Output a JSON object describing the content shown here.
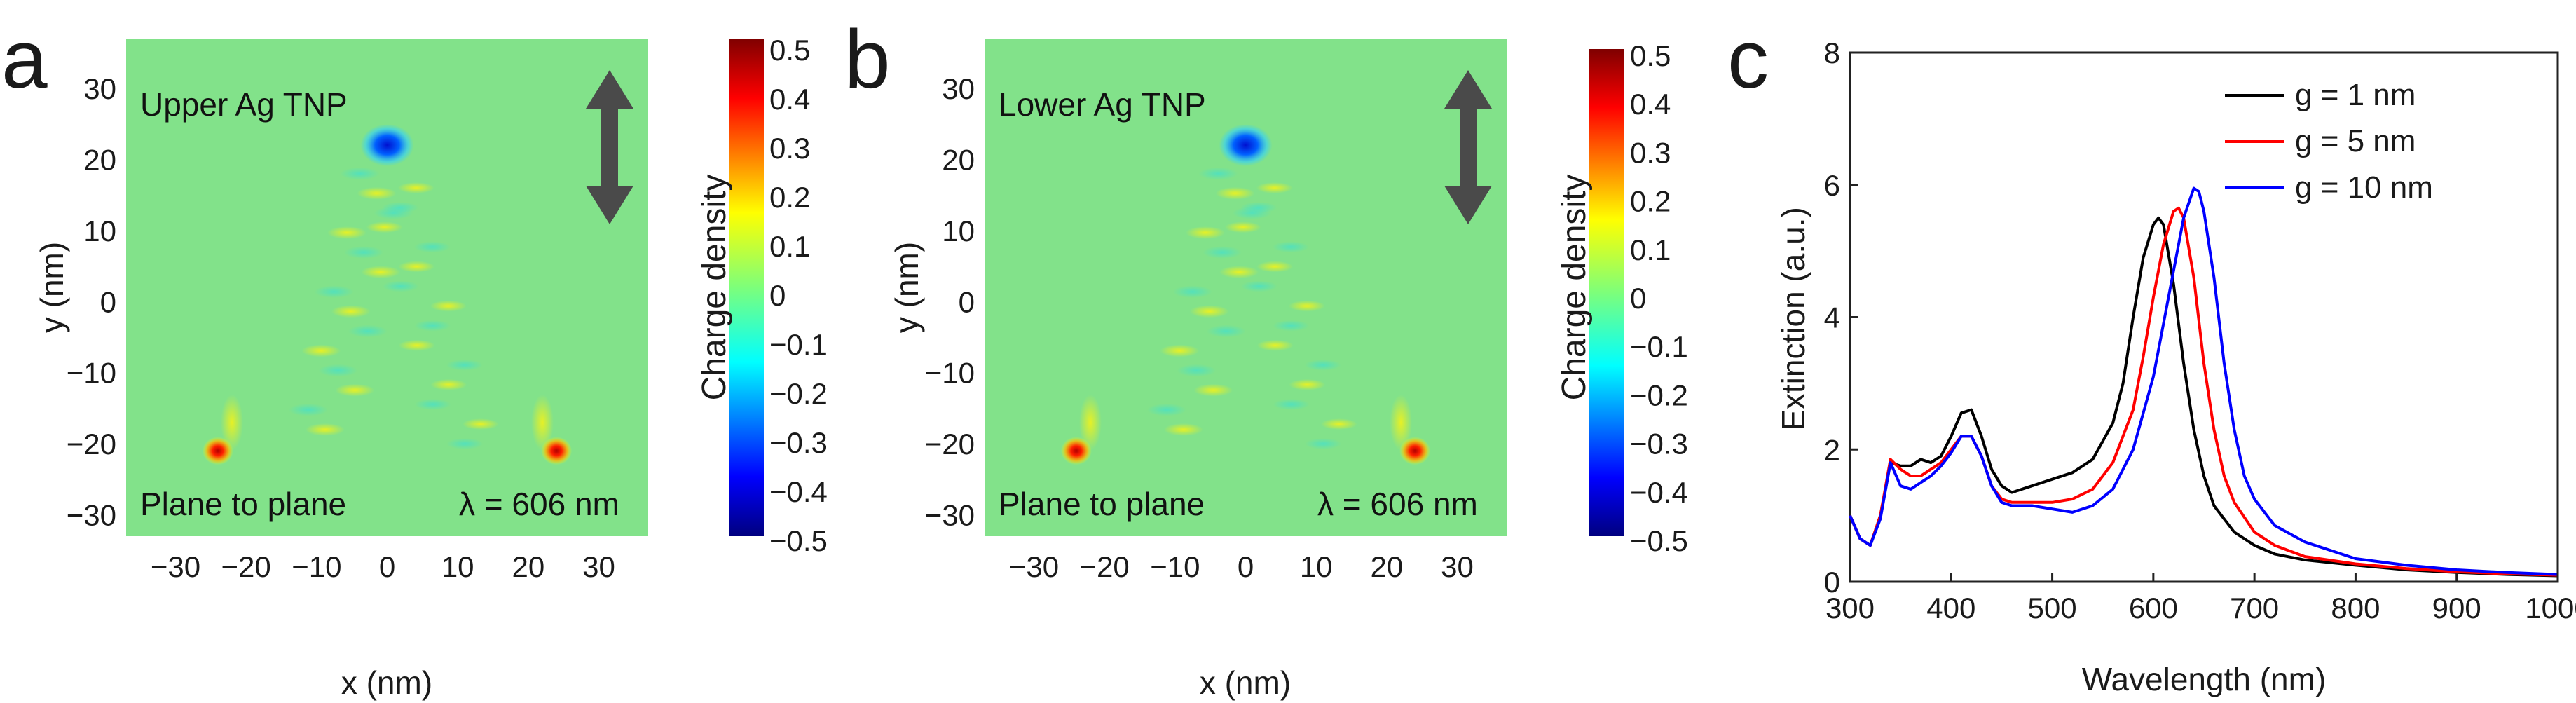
{
  "chart_data": [
    {
      "type": "heatmap",
      "panel": "a",
      "title": "Upper Ag TNP",
      "annotation_left": "Plane to plane",
      "annotation_right": "λ = 606 nm",
      "xlabel": "x (nm)",
      "ylabel": "y (nm)",
      "xlim": [
        -37,
        37
      ],
      "ylim": [
        -33,
        37
      ],
      "xticks": [
        -30,
        -20,
        -10,
        0,
        10,
        20,
        30
      ],
      "yticks": [
        30,
        20,
        10,
        0,
        -10,
        -20,
        -30
      ],
      "colorbar": {
        "label": "Charge density",
        "range": [
          -0.5,
          0.5
        ],
        "ticks": [
          "0.5",
          "0.4",
          "0.3",
          "0.2",
          "0.1",
          "0",
          "-0.1",
          "-0.2",
          "-0.3",
          "-0.4",
          "-0.5"
        ]
      },
      "hotspots": [
        {
          "x": 0,
          "y": 22,
          "value": -0.45
        },
        {
          "x": -24,
          "y": -21,
          "value": 0.45
        },
        {
          "x": 24,
          "y": -21,
          "value": 0.45
        }
      ]
    },
    {
      "type": "heatmap",
      "panel": "b",
      "title": "Lower Ag TNP",
      "annotation_left": "Plane to plane",
      "annotation_right": "λ = 606 nm",
      "xlabel": "x (nm)",
      "ylabel": "y (nm)",
      "xlim": [
        -37,
        37
      ],
      "ylim": [
        -33,
        37
      ],
      "xticks": [
        -30,
        -20,
        -10,
        0,
        10,
        20,
        30
      ],
      "yticks": [
        30,
        20,
        10,
        0,
        -10,
        -20,
        -30
      ],
      "colorbar": {
        "label": "Charge density",
        "range": [
          -0.5,
          0.5
        ],
        "ticks": [
          "0.5",
          "0.4",
          "0.3",
          "0.2",
          "0.1",
          "0",
          "-0.1",
          "-0.2",
          "-0.3",
          "-0.4",
          "-0.5"
        ]
      },
      "hotspots": [
        {
          "x": 0,
          "y": 22,
          "value": -0.45
        },
        {
          "x": -24,
          "y": -21,
          "value": 0.45
        },
        {
          "x": 24,
          "y": -21,
          "value": 0.45
        }
      ]
    },
    {
      "type": "line",
      "panel": "c",
      "xlabel": "Wavelength (nm)",
      "ylabel": "Extinction (a.u.)",
      "xlim": [
        300,
        1000
      ],
      "ylim": [
        0,
        8
      ],
      "xticks": [
        300,
        400,
        500,
        600,
        700,
        800,
        900,
        1000
      ],
      "yticks": [
        0,
        2,
        4,
        6,
        8
      ],
      "series": [
        {
          "name": "g = 1 nm",
          "color": "#000000",
          "x": [
            300,
            310,
            320,
            330,
            340,
            350,
            360,
            370,
            380,
            390,
            400,
            410,
            420,
            430,
            440,
            450,
            460,
            480,
            500,
            520,
            540,
            560,
            570,
            580,
            590,
            600,
            605,
            610,
            620,
            630,
            640,
            650,
            660,
            680,
            700,
            720,
            750,
            800,
            850,
            900,
            950,
            1000
          ],
          "y": [
            1.0,
            0.65,
            0.55,
            1.0,
            1.8,
            1.75,
            1.75,
            1.85,
            1.8,
            1.9,
            2.2,
            2.55,
            2.6,
            2.2,
            1.7,
            1.45,
            1.35,
            1.45,
            1.55,
            1.65,
            1.85,
            2.4,
            3.0,
            4.0,
            4.9,
            5.4,
            5.5,
            5.4,
            4.5,
            3.3,
            2.3,
            1.6,
            1.15,
            0.75,
            0.55,
            0.42,
            0.33,
            0.25,
            0.18,
            0.14,
            0.11,
            0.09
          ]
        },
        {
          "name": "g = 5 nm",
          "color": "#ff0000",
          "x": [
            300,
            310,
            320,
            330,
            340,
            350,
            360,
            370,
            380,
            390,
            400,
            410,
            420,
            430,
            440,
            450,
            460,
            480,
            500,
            520,
            540,
            560,
            580,
            590,
            600,
            610,
            620,
            625,
            630,
            640,
            650,
            660,
            670,
            680,
            700,
            720,
            750,
            800,
            850,
            900,
            950,
            1000
          ],
          "y": [
            1.0,
            0.65,
            0.55,
            1.0,
            1.85,
            1.7,
            1.6,
            1.6,
            1.7,
            1.8,
            2.0,
            2.2,
            2.2,
            1.9,
            1.45,
            1.25,
            1.2,
            1.2,
            1.2,
            1.25,
            1.4,
            1.8,
            2.6,
            3.4,
            4.3,
            5.1,
            5.6,
            5.65,
            5.5,
            4.6,
            3.3,
            2.3,
            1.6,
            1.2,
            0.75,
            0.55,
            0.38,
            0.27,
            0.2,
            0.15,
            0.12,
            0.1
          ]
        },
        {
          "name": "g = 10 nm",
          "color": "#0000ff",
          "x": [
            300,
            310,
            320,
            330,
            340,
            350,
            360,
            370,
            380,
            390,
            400,
            410,
            420,
            430,
            440,
            450,
            460,
            480,
            500,
            520,
            540,
            560,
            580,
            600,
            610,
            620,
            630,
            640,
            645,
            650,
            660,
            670,
            680,
            690,
            700,
            720,
            750,
            780,
            800,
            850,
            900,
            950,
            1000
          ],
          "y": [
            1.0,
            0.65,
            0.55,
            0.95,
            1.8,
            1.45,
            1.4,
            1.5,
            1.6,
            1.75,
            1.95,
            2.2,
            2.2,
            1.9,
            1.45,
            1.2,
            1.15,
            1.15,
            1.1,
            1.05,
            1.15,
            1.4,
            2.0,
            3.1,
            3.9,
            4.7,
            5.5,
            5.95,
            5.9,
            5.6,
            4.6,
            3.3,
            2.3,
            1.6,
            1.25,
            0.85,
            0.6,
            0.45,
            0.35,
            0.25,
            0.18,
            0.14,
            0.11
          ]
        }
      ]
    }
  ]
}
